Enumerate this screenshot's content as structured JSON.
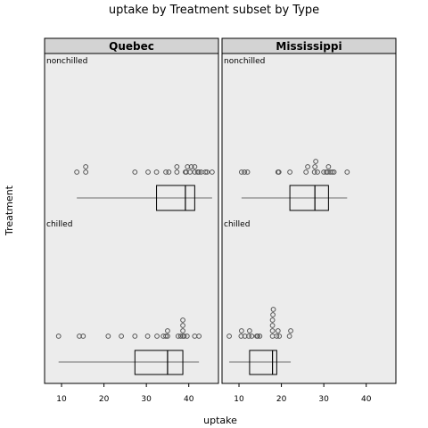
{
  "chart_data": {
    "type": "box",
    "title": "uptake by Treatment subset by Type",
    "xlabel": "uptake",
    "ylabel": "Treatment",
    "xlim": [
      6,
      47
    ],
    "x_ticks": [
      10,
      20,
      30,
      40
    ],
    "treatments": [
      "nonchilled",
      "chilled"
    ],
    "panels": [
      {
        "name": "Quebec",
        "groups": [
          {
            "treatment": "nonchilled",
            "points": [
              13.6,
              15.7,
              15.7,
              27.3,
              30.4,
              32.4,
              34.6,
              35.3,
              37.2,
              37.2,
              39.2,
              39.4,
              39.7,
              40.3,
              40.6,
              41.4,
              41.4,
              42.1,
              42.4,
              42.9,
              43.9,
              44.3,
              45.5
            ],
            "whisker_low": 13.6,
            "q1": 32.4,
            "median": 39.2,
            "q3": 41.4,
            "whisker_high": 45.5
          },
          {
            "treatment": "chilled",
            "points": [
              9.3,
              14.2,
              15.1,
              21.0,
              24.1,
              27.3,
              30.3,
              32.5,
              34.0,
              34.6,
              35.0,
              35.0,
              37.5,
              38.1,
              38.6,
              38.6,
              38.6,
              38.6,
              38.9,
              39.6,
              41.4,
              42.4
            ],
            "whisker_low": 9.3,
            "q1": 27.3,
            "median": 35.0,
            "q3": 38.6,
            "whisker_high": 42.4
          }
        ]
      },
      {
        "name": "Mississippi",
        "groups": [
          {
            "treatment": "nonchilled",
            "points": [
              10.6,
              11.3,
              12.0,
              19.2,
              19.4,
              22.0,
              25.8,
              26.2,
              27.8,
              27.9,
              28.1,
              28.5,
              30.0,
              30.6,
              30.9,
              31.1,
              31.5,
              32.0,
              32.4,
              35.5
            ],
            "whisker_low": 10.6,
            "q1": 22.0,
            "median": 27.9,
            "q3": 31.1,
            "whisker_high": 35.5
          },
          {
            "treatment": "chilled",
            "points": [
              7.7,
              10.5,
              10.6,
              11.4,
              12.3,
              12.5,
              13.0,
              14.2,
              14.4,
              14.9,
              17.9,
              17.9,
              17.9,
              17.9,
              18.0,
              18.1,
              18.9,
              19.2,
              19.5,
              21.9,
              22.2
            ],
            "whisker_low": 7.7,
            "q1": 12.5,
            "median": 17.9,
            "q3": 18.9,
            "whisker_high": 22.2
          }
        ]
      }
    ]
  }
}
